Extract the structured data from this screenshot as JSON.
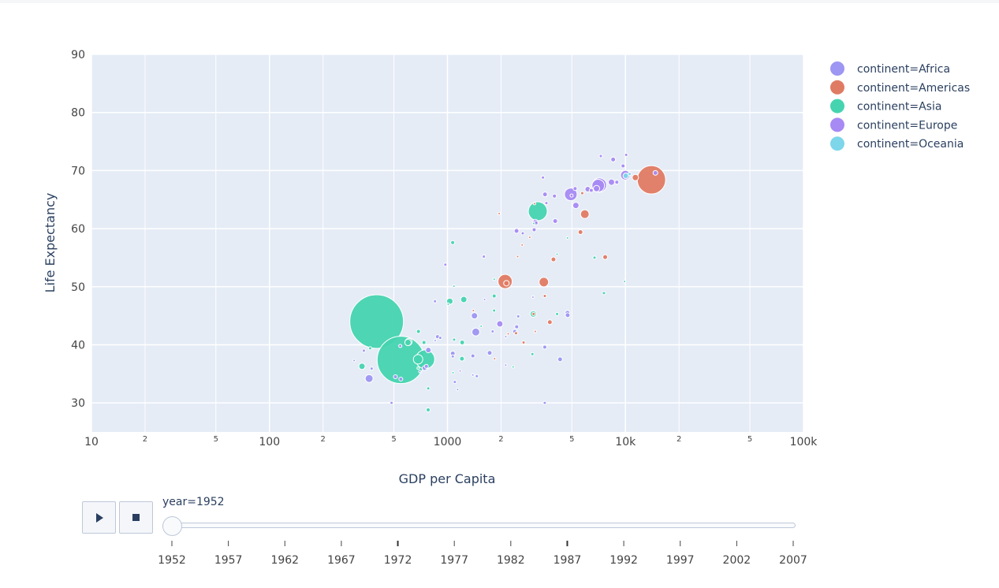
{
  "chart_data": {
    "type": "scatter",
    "xlabel": "GDP per Capita",
    "ylabel": "Life Expectancy",
    "x_scale": "log",
    "xlim": [
      10,
      100000
    ],
    "ylim": [
      25,
      90
    ],
    "x_ticks": [
      {
        "value": 10,
        "label": "10",
        "major": true
      },
      {
        "value": 20,
        "label": "2",
        "major": false
      },
      {
        "value": 50,
        "label": "5",
        "major": false
      },
      {
        "value": 100,
        "label": "100",
        "major": true
      },
      {
        "value": 200,
        "label": "2",
        "major": false
      },
      {
        "value": 500,
        "label": "5",
        "major": false
      },
      {
        "value": 1000,
        "label": "1000",
        "major": true
      },
      {
        "value": 2000,
        "label": "2",
        "major": false
      },
      {
        "value": 5000,
        "label": "5",
        "major": false
      },
      {
        "value": 10000,
        "label": "10k",
        "major": true
      },
      {
        "value": 20000,
        "label": "2",
        "major": false
      },
      {
        "value": 50000,
        "label": "5",
        "major": false
      },
      {
        "value": 100000,
        "label": "100k",
        "major": true
      }
    ],
    "y_ticks": [
      30,
      40,
      50,
      60,
      70,
      80,
      90
    ],
    "grid": true,
    "legend_position": "top-right",
    "series": [
      {
        "name": "continent=Africa",
        "color": "#9d96f2",
        "points": [
          [
            2449,
            43.1,
            5
          ],
          [
            3521,
            30,
            4
          ],
          [
            851,
            47.5,
            4
          ],
          [
            543,
            39.8,
            4
          ],
          [
            339,
            39,
            4
          ],
          [
            1071,
            38.5,
            6
          ],
          [
            1178,
            35.5,
            3
          ],
          [
            1071,
            38,
            4
          ],
          [
            1389,
            38.1,
            5
          ],
          [
            853,
            40.7,
            3
          ],
          [
            781,
            39.1,
            7
          ],
          [
            2126,
            41.4,
            3
          ],
          [
            1388,
            34.8,
            3
          ],
          [
            375,
            35.9,
            4
          ],
          [
            1418,
            45,
            8
          ],
          [
            547,
            34.1,
            5
          ],
          [
            2125,
            36.5,
            3
          ],
          [
            4293,
            37.5,
            6
          ],
          [
            485,
            30,
            4
          ],
          [
            911,
            41.2,
            4
          ],
          [
            510,
            34.5,
            5
          ],
          [
            299,
            37.3,
            3
          ],
          [
            1443,
            42.2,
            10
          ],
          [
            3521,
            39.6,
            5
          ],
          [
            2497,
            44.9,
            4
          ],
          [
            1617,
            47.8,
            3
          ],
          [
            744,
            36,
            6
          ],
          [
            2387,
            42.3,
            5
          ],
          [
            4725,
            45.5,
            6
          ],
          [
            1100,
            33.6,
            4
          ],
          [
            761,
            36.3,
            5
          ],
          [
            1462,
            34.6,
            4
          ],
          [
            700,
            35.4,
            3
          ],
          [
            879,
            41.4,
            5
          ],
          [
            4735,
            45.1,
            6
          ],
          [
            363,
            34.2,
            10
          ],
          [
            1726,
            38.6,
            6
          ],
          [
            3021,
            48.2,
            3
          ],
          [
            1141,
            32.3,
            3
          ],
          [
            1794,
            42.3,
            4
          ]
        ]
      },
      {
        "name": "continent=Americas",
        "color": "#e07b63",
        "points": [
          [
            5911,
            62.5,
            11
          ],
          [
            2677,
            40.4,
            4
          ],
          [
            2108,
            50.9,
            18
          ],
          [
            11367,
            68.8,
            8
          ],
          [
            3940,
            54.7,
            6
          ],
          [
            2144,
            50.6,
            7
          ],
          [
            2627,
            57.2,
            3
          ],
          [
            5587,
            59.4,
            6
          ],
          [
            1398,
            45.9,
            3
          ],
          [
            3522,
            48.4,
            4
          ],
          [
            3048,
            45.3,
            4
          ],
          [
            2428,
            42,
            4
          ],
          [
            1840,
            37.6,
            3
          ],
          [
            2194,
            41.9,
            3
          ],
          [
            2898,
            58.5,
            3
          ],
          [
            3478,
            50.8,
            12
          ],
          [
            3112,
            42.3,
            3
          ],
          [
            2480,
            55.2,
            3
          ],
          [
            1952,
            62.6,
            3
          ],
          [
            3759,
            43.9,
            6
          ],
          [
            3082,
            64.3,
            3
          ],
          [
            13990,
            68.4,
            36
          ],
          [
            5716,
            66.1,
            4
          ],
          [
            7690,
            55.1,
            6
          ]
        ]
      },
      {
        "name": "continent=Asia",
        "color": "#46d4b0",
        "points": [
          [
            779,
            28.8,
            5
          ],
          [
            9867,
            50.9,
            3
          ],
          [
            684,
            37.5,
            12
          ],
          [
            368,
            39.4,
            4
          ],
          [
            400,
            44,
            68
          ],
          [
            3054,
            60.9,
            3
          ],
          [
            547,
            37.4,
            60
          ],
          [
            750,
            37.5,
            24
          ],
          [
            4130,
            45.3,
            4
          ],
          [
            3036,
            45.3,
            8
          ],
          [
            4130,
            55.6,
            3
          ],
          [
            3217,
            63,
            24
          ],
          [
            1546,
            43.2,
            3
          ],
          [
            1088,
            50.1,
            3
          ],
          [
            1031,
            47.5,
            8
          ],
          [
            6700,
            55,
            4
          ],
          [
            1830,
            48.4,
            5
          ],
          [
            331,
            36.3,
            8
          ],
          [
            687,
            42.3,
            5
          ],
          [
            1235,
            47.8,
            8
          ],
          [
            2338,
            36.2,
            3
          ],
          [
            1210,
            40.4,
            6
          ],
          [
            1070,
            57.6,
            5
          ],
          [
            1829,
            45.9,
            4
          ],
          [
            1010,
            47,
            3
          ],
          [
            684,
            36,
            3
          ],
          [
            605,
            40.5,
            9
          ],
          [
            7570,
            48.9,
            4
          ],
          [
            1831,
            51.3,
            3
          ],
          [
            3000,
            38.4,
            4
          ],
          [
            1075,
            35.2,
            3
          ],
          [
            738,
            40.4,
            5
          ],
          [
            1206,
            37.6,
            6
          ],
          [
            4725,
            58.4,
            3
          ],
          [
            600,
            40.4,
            8
          ],
          [
            1090,
            40.9,
            4
          ],
          [
            780,
            32.5,
            4
          ]
        ]
      },
      {
        "name": "continent=Europe",
        "color": "#a78af3",
        "points": [
          [
            1601,
            55.2,
            4
          ],
          [
            6137,
            66.8,
            7
          ],
          [
            8343,
            68,
            8
          ],
          [
            973,
            53.8,
            4
          ],
          [
            2444,
            59.6,
            6
          ],
          [
            3119,
            61.2,
            6
          ],
          [
            6876,
            66.9,
            8
          ],
          [
            9692,
            70.8,
            5
          ],
          [
            6425,
            66.6,
            5
          ],
          [
            7030,
            67.4,
            16
          ],
          [
            7144,
            67.5,
            18
          ],
          [
            3531,
            65.9,
            6
          ],
          [
            5264,
            64,
            8
          ],
          [
            7268,
            72.5,
            4
          ],
          [
            5211,
            66.9,
            5
          ],
          [
            4931,
            65.9,
            16
          ],
          [
            2648,
            59.2,
            4
          ],
          [
            8942,
            68,
            5
          ],
          [
            10096,
            72.7,
            4
          ],
          [
            4029,
            61.3,
            6
          ],
          [
            3069,
            59.8,
            5
          ],
          [
            3145,
            61,
            5
          ],
          [
            3595,
            64.4,
            4
          ],
          [
            4982,
            65.7,
            4
          ],
          [
            3990,
            65.6,
            5
          ],
          [
            8527,
            71.9,
            6
          ],
          [
            14734,
            69.6,
            6
          ],
          [
            1969,
            43.6,
            8
          ],
          [
            9980,
            69.2,
            12
          ],
          [
            3440,
            68.8,
            4
          ]
        ]
      },
      {
        "name": "continent=Oceania",
        "color": "#7dd6ea",
        "points": [
          [
            10040,
            69.1,
            7
          ],
          [
            10557,
            69.4,
            4
          ]
        ]
      }
    ],
    "animation": {
      "label": "year=1952",
      "years": [
        "1952",
        "1957",
        "1962",
        "1967",
        "1972",
        "1977",
        "1982",
        "1987",
        "1992",
        "1997",
        "2002",
        "2007"
      ],
      "current": "1952"
    }
  }
}
